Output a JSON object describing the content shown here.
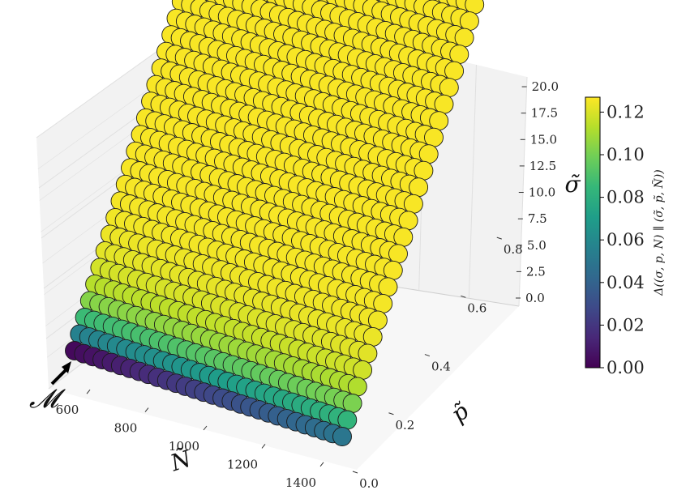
{
  "chart_data": {
    "type": "scatter",
    "projection": "3d",
    "x_axis": {
      "label": "Ñ",
      "ticks": [
        600,
        800,
        1000,
        1200,
        1400
      ],
      "tick_labels": [
        "600",
        "800",
        "1000",
        "1200",
        "1400"
      ],
      "range": [
        500,
        1500
      ]
    },
    "y_axis": {
      "label": "p̃",
      "ticks": [
        0.0,
        0.2,
        0.4,
        0.6,
        0.8
      ],
      "tick_labels": [
        "0.0",
        "0.2",
        "0.4",
        "0.6",
        "0.8"
      ],
      "range": [
        0.0,
        0.9
      ]
    },
    "z_axis": {
      "label": "σ̃",
      "ticks": [
        0.0,
        2.5,
        5.0,
        7.5,
        10.0,
        12.5,
        15.0,
        17.5,
        20.0
      ],
      "tick_labels": [
        "0.0",
        "2.5",
        "5.0",
        "7.5",
        "10.0",
        "12.5",
        "15.0",
        "17.5",
        "20.0"
      ],
      "range": [
        0.0,
        21.0
      ]
    },
    "grid": {
      "n_values": [
        500,
        1500
      ],
      "n_count": 30,
      "p_values": [
        0.0,
        0.9
      ],
      "p_count": 30,
      "sigma_relation": "σ̃ rises linearly with p̃ to 21.0 at p̃ = 0.9"
    },
    "colorbar": {
      "label": "Δ((σ, p, N) ∥ (σ̃, p̃, Ñ))",
      "ticks": [
        0.0,
        0.02,
        0.04,
        0.06,
        0.08,
        0.1,
        0.12
      ],
      "tick_labels": [
        "0.00",
        "0.02",
        "0.04",
        "0.06",
        "0.08",
        "0.10",
        "0.12"
      ],
      "range": [
        0.0,
        0.127
      ],
      "colormap": "viridis"
    },
    "color_model": {
      "edge_row_p0": "rises from 0.003 at Ñ = 500 to 0.05 at Ñ = 1500",
      "interior": "approaches 0.126 as p̃ grows"
    },
    "annotation": {
      "text": "𝓜",
      "points_to": "marker at Ñ = 500, p̃ = 0, σ̃ = 0",
      "arrow": true
    }
  },
  "colors": {
    "pane": "#f2f2f2",
    "grid": "#e0e0e0",
    "marker_edge": "#1a1a1a",
    "viridis_stops": [
      "#440154",
      "#482878",
      "#3e4a89",
      "#31688e",
      "#26828e",
      "#1f9e89",
      "#35b779",
      "#6ece58",
      "#b5de2b",
      "#fde725"
    ]
  }
}
